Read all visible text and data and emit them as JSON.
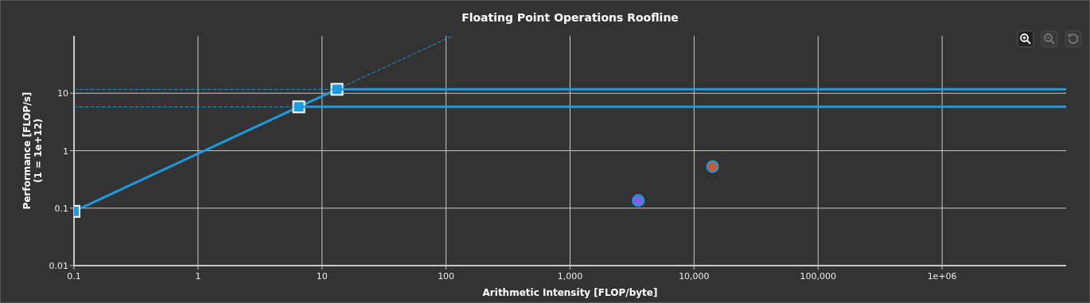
{
  "chart_data": {
    "type": "line",
    "title": "Floating Point Operations Roofline",
    "xlabel": "Arithmetic Intensity [FLOP/byte]",
    "ylabel": "Performance [FLOP/s]\n(1 = 1e+12)",
    "log": "xy",
    "grid": true,
    "xlim": [
      0.1,
      10000000
    ],
    "xticks": [
      0.1,
      1,
      10,
      100,
      {
        "value": 1000,
        "label": "1,000"
      },
      {
        "value": 10000,
        "label": "10,000"
      },
      {
        "value": 100000,
        "label": "100,000"
      },
      {
        "value": 1000000,
        "label": "1e+06"
      }
    ],
    "ylim": [
      0.01,
      100
    ],
    "yticks": [
      0.01,
      0.1,
      1,
      10
    ],
    "series": [
      {
        "type": "line",
        "color": "#1e9be0",
        "line_style": "solid",
        "marker": "square",
        "x": [
          0.1,
          6.5,
          13.2
        ],
        "values": [
          0.088,
          5.8,
          11.7
        ]
      },
      {
        "type": "line",
        "color": "#1e9be0",
        "line_style": "solid",
        "marker": "none",
        "x": [
          13.2,
          10000000
        ],
        "values": [
          11.7,
          11.7
        ]
      },
      {
        "type": "line",
        "color": "#1e9be0",
        "line_style": "solid",
        "marker": "none",
        "x": [
          6.5,
          10000000
        ],
        "values": [
          5.8,
          5.8
        ]
      },
      {
        "type": "line",
        "color": "#1e9be0",
        "line_style": "dashed",
        "marker": "none",
        "x": [
          13.2,
          114
        ],
        "values": [
          11.7,
          100
        ]
      },
      {
        "type": "line",
        "color": "#1e9be0",
        "line_style": "dashed",
        "marker": "none",
        "x": [
          0.1,
          13.2
        ],
        "values": [
          11.7,
          11.7
        ]
      },
      {
        "type": "line",
        "color": "#1e9be0",
        "line_style": "dashed",
        "marker": "none",
        "x": [
          0.1,
          6.5
        ],
        "values": [
          5.8,
          5.8
        ]
      },
      {
        "type": "scatter",
        "color": "#7b62e0",
        "marker": "circle",
        "x": [
          3550
        ],
        "values": [
          0.136
        ]
      },
      {
        "type": "scatter",
        "color": "#c85a3a",
        "marker": "circle",
        "x": [
          14100
        ],
        "values": [
          0.53
        ]
      }
    ]
  }
}
